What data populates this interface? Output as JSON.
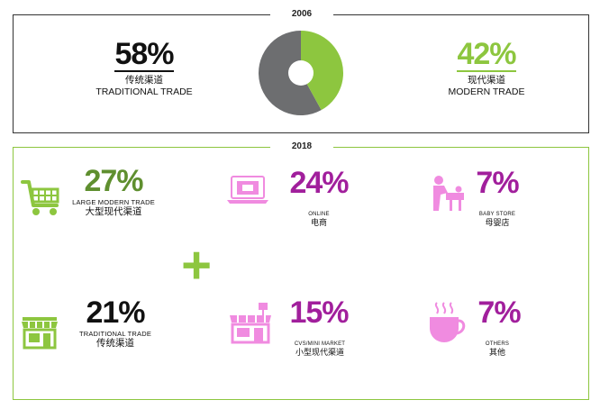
{
  "chart_data": [
    {
      "type": "pie",
      "year_label": "2006",
      "slices": [
        {
          "name_cn": "传统渠道",
          "name_en": "TRADITIONAL TRADE",
          "value": 58,
          "label": "58%",
          "color": "#6d6e70"
        },
        {
          "name_cn": "现代渠道",
          "name_en": "MODERN TRADE",
          "value": 42,
          "label": "42%",
          "color": "#8dc63f"
        }
      ]
    },
    {
      "type": "table",
      "year_label": "2018",
      "plus_sign": "+",
      "items": [
        {
          "value": 27,
          "label": "27%",
          "name_en": "LARGE MODERN TRADE",
          "name_cn": "大型现代渠道",
          "icon": "shopping-cart-icon",
          "color": "#5f8f2f"
        },
        {
          "value": 24,
          "label": "24%",
          "name_en": "ONLINE",
          "name_cn": "电商",
          "icon": "laptop-shop-icon",
          "color": "#a11f9c"
        },
        {
          "value": 7,
          "label": "7%",
          "name_en": "BABY STORE",
          "name_cn": "母婴店",
          "icon": "mother-baby-icon",
          "color": "#a11f9c"
        },
        {
          "value": 21,
          "label": "21%",
          "name_en": "TRADITIONAL TRADE",
          "name_cn": "传统渠道",
          "icon": "storefront-icon",
          "color": "#111111"
        },
        {
          "value": 15,
          "label": "15%",
          "name_en": "CVS/MINI MARKET",
          "name_cn": "小型现代渠道",
          "icon": "mini-market-icon",
          "color": "#a11f9c"
        },
        {
          "value": 7,
          "label": "7%",
          "name_en": "OTHERS",
          "name_cn": "其他",
          "icon": "coffee-cup-icon",
          "color": "#a11f9c"
        }
      ]
    }
  ],
  "colors": {
    "grey": "#6d6e70",
    "green": "#8dc63f",
    "dark_green": "#5f8f2f",
    "purple": "#a11f9c",
    "pink_icon": "#f08be0"
  }
}
